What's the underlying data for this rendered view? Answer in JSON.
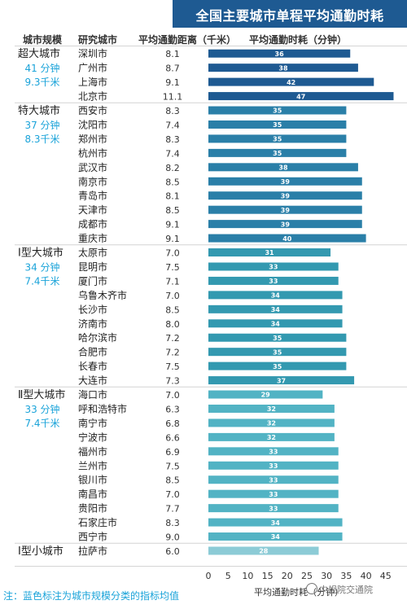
{
  "header": {
    "title": "全国主要城市单程平均通勤时耗",
    "col_tier": "城市规模",
    "col_city": "研究城市",
    "col_distance": "平均通勤距离（千米）",
    "col_time": "平均通勤时耗（分钟）"
  },
  "footnote": "注：蓝色标注为城市规模分类的指标均值",
  "watermark": "中规院交通院",
  "chart_data": {
    "type": "bar",
    "orientation": "horizontal",
    "title": "全国主要城市单程平均通勤时耗",
    "xlabel": "平均通勤时耗（分钟）",
    "xlim": [
      0,
      45
    ],
    "xticks": [
      0,
      5,
      10,
      15,
      20,
      25,
      30,
      35,
      40,
      45
    ],
    "tiers": [
      {
        "name": "超大城市",
        "avg_time": "41 分钟",
        "avg_distance": "9.3千米",
        "color": "#1e5a92",
        "rows": [
          {
            "city": "深圳市",
            "distance": "8.1",
            "time": 36
          },
          {
            "city": "广州市",
            "distance": "8.7",
            "time": 38
          },
          {
            "city": "上海市",
            "distance": "9.1",
            "time": 42
          },
          {
            "city": "北京市",
            "distance": "11.1",
            "time": 47
          }
        ]
      },
      {
        "name": "特大城市",
        "avg_time": "37 分钟",
        "avg_distance": "8.3千米",
        "color": "#2a7fa8",
        "rows": [
          {
            "city": "西安市",
            "distance": "8.3",
            "time": 35
          },
          {
            "city": "沈阳市",
            "distance": "7.4",
            "time": 35
          },
          {
            "city": "郑州市",
            "distance": "8.3",
            "time": 35
          },
          {
            "city": "杭州市",
            "distance": "7.4",
            "time": 35
          },
          {
            "city": "武汉市",
            "distance": "8.2",
            "time": 38
          },
          {
            "city": "南京市",
            "distance": "8.5",
            "time": 39
          },
          {
            "city": "青岛市",
            "distance": "8.1",
            "time": 39
          },
          {
            "city": "天津市",
            "distance": "8.5",
            "time": 39
          },
          {
            "city": "成都市",
            "distance": "9.1",
            "time": 39
          },
          {
            "city": "重庆市",
            "distance": "9.1",
            "time": 40
          }
        ]
      },
      {
        "name": "Ⅰ型大城市",
        "avg_time": "34 分钟",
        "avg_distance": "7.4千米",
        "color": "#3399b0",
        "rows": [
          {
            "city": "太原市",
            "distance": "7.0",
            "time": 31
          },
          {
            "city": "昆明市",
            "distance": "7.5",
            "time": 33
          },
          {
            "city": "厦门市",
            "distance": "7.1",
            "time": 33
          },
          {
            "city": "乌鲁木齐市",
            "distance": "7.0",
            "time": 34
          },
          {
            "city": "长沙市",
            "distance": "8.5",
            "time": 34
          },
          {
            "city": "济南市",
            "distance": "8.0",
            "time": 34
          },
          {
            "city": "哈尔滨市",
            "distance": "7.2",
            "time": 35
          },
          {
            "city": "合肥市",
            "distance": "7.2",
            "time": 35
          },
          {
            "city": "长春市",
            "distance": "7.5",
            "time": 35
          },
          {
            "city": "大连市",
            "distance": "7.3",
            "time": 37
          }
        ]
      },
      {
        "name": "Ⅱ型大城市",
        "avg_time": "33 分钟",
        "avg_distance": "7.4千米",
        "color": "#52b3c4",
        "rows": [
          {
            "city": "海口市",
            "distance": "7.0",
            "time": 29
          },
          {
            "city": "呼和浩特市",
            "distance": "6.3",
            "time": 32
          },
          {
            "city": "南宁市",
            "distance": "6.8",
            "time": 32
          },
          {
            "city": "宁波市",
            "distance": "6.6",
            "time": 32
          },
          {
            "city": "福州市",
            "distance": "6.9",
            "time": 33
          },
          {
            "city": "兰州市",
            "distance": "7.5",
            "time": 33
          },
          {
            "city": "银川市",
            "distance": "8.5",
            "time": 33
          },
          {
            "city": "南昌市",
            "distance": "7.0",
            "time": 33
          },
          {
            "city": "贵阳市",
            "distance": "7.7",
            "time": 33
          },
          {
            "city": "石家庄市",
            "distance": "8.3",
            "time": 34
          },
          {
            "city": "西宁市",
            "distance": "9.0",
            "time": 34
          }
        ]
      },
      {
        "name": "Ⅰ型小城市",
        "avg_time": "",
        "avg_distance": "",
        "color": "#8ccbd6",
        "rows": [
          {
            "city": "拉萨市",
            "distance": "6.0",
            "time": 28
          }
        ]
      }
    ]
  }
}
